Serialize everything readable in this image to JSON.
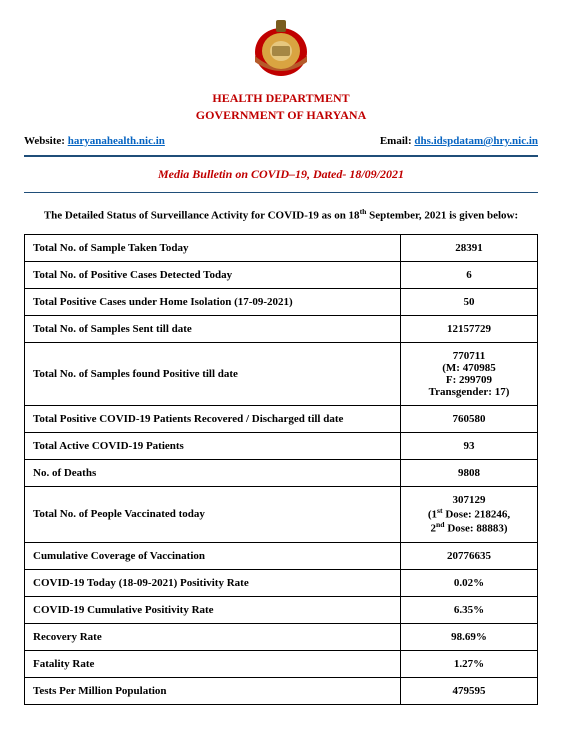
{
  "header": {
    "dept": "HEALTH DEPARTMENT",
    "govt": "GOVERNMENT OF HARYANA",
    "website_label": "Website: ",
    "website_link": "haryanahealth.nic.in",
    "email_label": "Email: ",
    "email_link": "dhs.idspdatam@hry.nic.in",
    "bulletin_prefix": "Media Bulletin on ",
    "bulletin_bold": "COVID–19,",
    "bulletin_suffix": " Dated- 18/09/2021",
    "intro_prefix": "The Detailed Status of Surveillance Activity for COVID-19 as on 18",
    "intro_sup": "th",
    "intro_suffix": " September, 2021 is given below:"
  },
  "emblem": {
    "outer_color": "#c00000",
    "ribbon_color": "#b55a2a",
    "inner_color": "#d9a441",
    "center_color": "#e6c77e",
    "top_color": "#7a5c1e"
  },
  "rows": [
    {
      "label": "Total No. of Sample Taken Today",
      "value": "28391"
    },
    {
      "label": "Total No. of Positive Cases Detected Today",
      "value": "6"
    },
    {
      "label": "Total Positive Cases under Home Isolation (17-09-2021)",
      "value": "50"
    },
    {
      "label": "Total No. of Samples Sent till date",
      "value": "12157729"
    },
    {
      "label": "Total No. of Samples found Positive till date",
      "value": "770711\n(M: 470985\nF: 299709\nTransgender: 17)"
    },
    {
      "label": "Total Positive COVID-19 Patients Recovered / Discharged till date",
      "value": "760580"
    },
    {
      "label": "Total Active COVID-19 Patients",
      "value": "93"
    },
    {
      "label": "No. of Deaths",
      "value": "9808"
    },
    {
      "label": "Total No. of People Vaccinated today",
      "value_html": "307129<br>(1<span class=\"sup\">st</span> Dose: 218246,<br>2<span class=\"sup\">nd</span> Dose: 88883)"
    },
    {
      "label": "Cumulative Coverage of Vaccination",
      "value": "20776635"
    },
    {
      "label": "COVID-19 Today (18-09-2021) Positivity Rate",
      "value": "0.02%"
    },
    {
      "label": "COVID-19 Cumulative Positivity Rate",
      "value": "6.35%"
    },
    {
      "label": "Recovery Rate",
      "value": "98.69%"
    },
    {
      "label": "Fatality Rate",
      "value": "1.27%"
    },
    {
      "label": "Tests Per Million Population",
      "value": "479595"
    }
  ],
  "style": {
    "brand_red": "#c00000",
    "rule_blue": "#1f4e79",
    "link_blue": "#0563c1",
    "text_color": "#000000",
    "background": "#ffffff",
    "font": "Times New Roman"
  }
}
